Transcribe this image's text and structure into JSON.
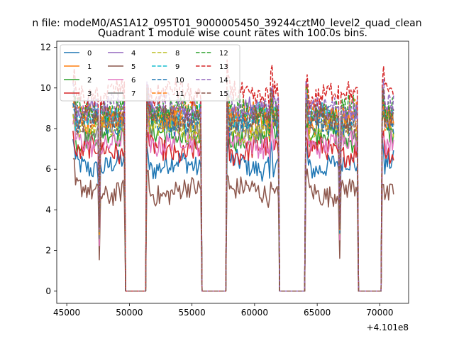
{
  "chart_data": {
    "type": "line",
    "suptitle": "n file: modeM0/AS1A12_095T01_9000005450_39244cztM0_level2_quad_clean",
    "title": "Quadrant 1 module wise count rates with 100.0s bins.",
    "xlabel": "",
    "ylabel": "",
    "x_offset_label": "+4.101e8",
    "xlim": [
      44200,
      72300
    ],
    "ylim": [
      -0.6,
      12.3
    ],
    "xticks": [
      45000,
      50000,
      55000,
      60000,
      65000,
      70000
    ],
    "yticks": [
      0,
      2,
      4,
      6,
      8,
      10,
      12
    ],
    "legend": {
      "location": "top-left",
      "ncol": 4
    },
    "segments": [
      {
        "start": 45500,
        "end": 49600,
        "dip_at": 47600,
        "dip_frac": 0.34
      },
      {
        "start": 51400,
        "end": 55700,
        "dip_at": null,
        "dip_frac": 1
      },
      {
        "start": 57800,
        "end": 61200,
        "dip_at": 61200,
        "dip_frac": 0.9
      },
      {
        "start": 61300,
        "end": 61900,
        "dip_at": null,
        "dip_frac": 1
      },
      {
        "start": 64100,
        "end": 68200,
        "dip_at": 66800,
        "dip_frac": 0.36
      },
      {
        "start": 70200,
        "end": 71100,
        "dip_at": null,
        "dip_frac": 1
      }
    ],
    "gap_value": 0,
    "series": [
      {
        "name": "0",
        "color": "#1f77b4",
        "dash": "solid",
        "mean": 6.2
      },
      {
        "name": "1",
        "color": "#ff7f0e",
        "dash": "solid",
        "mean": 8.4
      },
      {
        "name": "2",
        "color": "#2ca02c",
        "dash": "solid",
        "mean": 7.6
      },
      {
        "name": "3",
        "color": "#d62728",
        "dash": "solid",
        "mean": 6.9
      },
      {
        "name": "4",
        "color": "#9467bd",
        "dash": "solid",
        "mean": 8.8
      },
      {
        "name": "5",
        "color": "#8c564b",
        "dash": "solid",
        "mean": 4.9
      },
      {
        "name": "6",
        "color": "#e377c2",
        "dash": "solid",
        "mean": 7.3
      },
      {
        "name": "7",
        "color": "#7f7f7f",
        "dash": "solid",
        "mean": 8.1
      },
      {
        "name": "8",
        "color": "#bcbd22",
        "dash": "dashed",
        "mean": 8.0
      },
      {
        "name": "9",
        "color": "#17becf",
        "dash": "dashed",
        "mean": 8.6
      },
      {
        "name": "10",
        "color": "#1f77b4",
        "dash": "dashed",
        "mean": 8.3
      },
      {
        "name": "11",
        "color": "#ff7f0e",
        "dash": "dashed",
        "mean": 8.7
      },
      {
        "name": "12",
        "color": "#2ca02c",
        "dash": "dashed",
        "mean": 8.9
      },
      {
        "name": "13",
        "color": "#d62728",
        "dash": "dashed",
        "mean": 9.7
      },
      {
        "name": "14",
        "color": "#9467bd",
        "dash": "dashed",
        "mean": 9.0
      },
      {
        "name": "15",
        "color": "#8c564b",
        "dash": "dashed",
        "mean": 8.5
      }
    ]
  }
}
